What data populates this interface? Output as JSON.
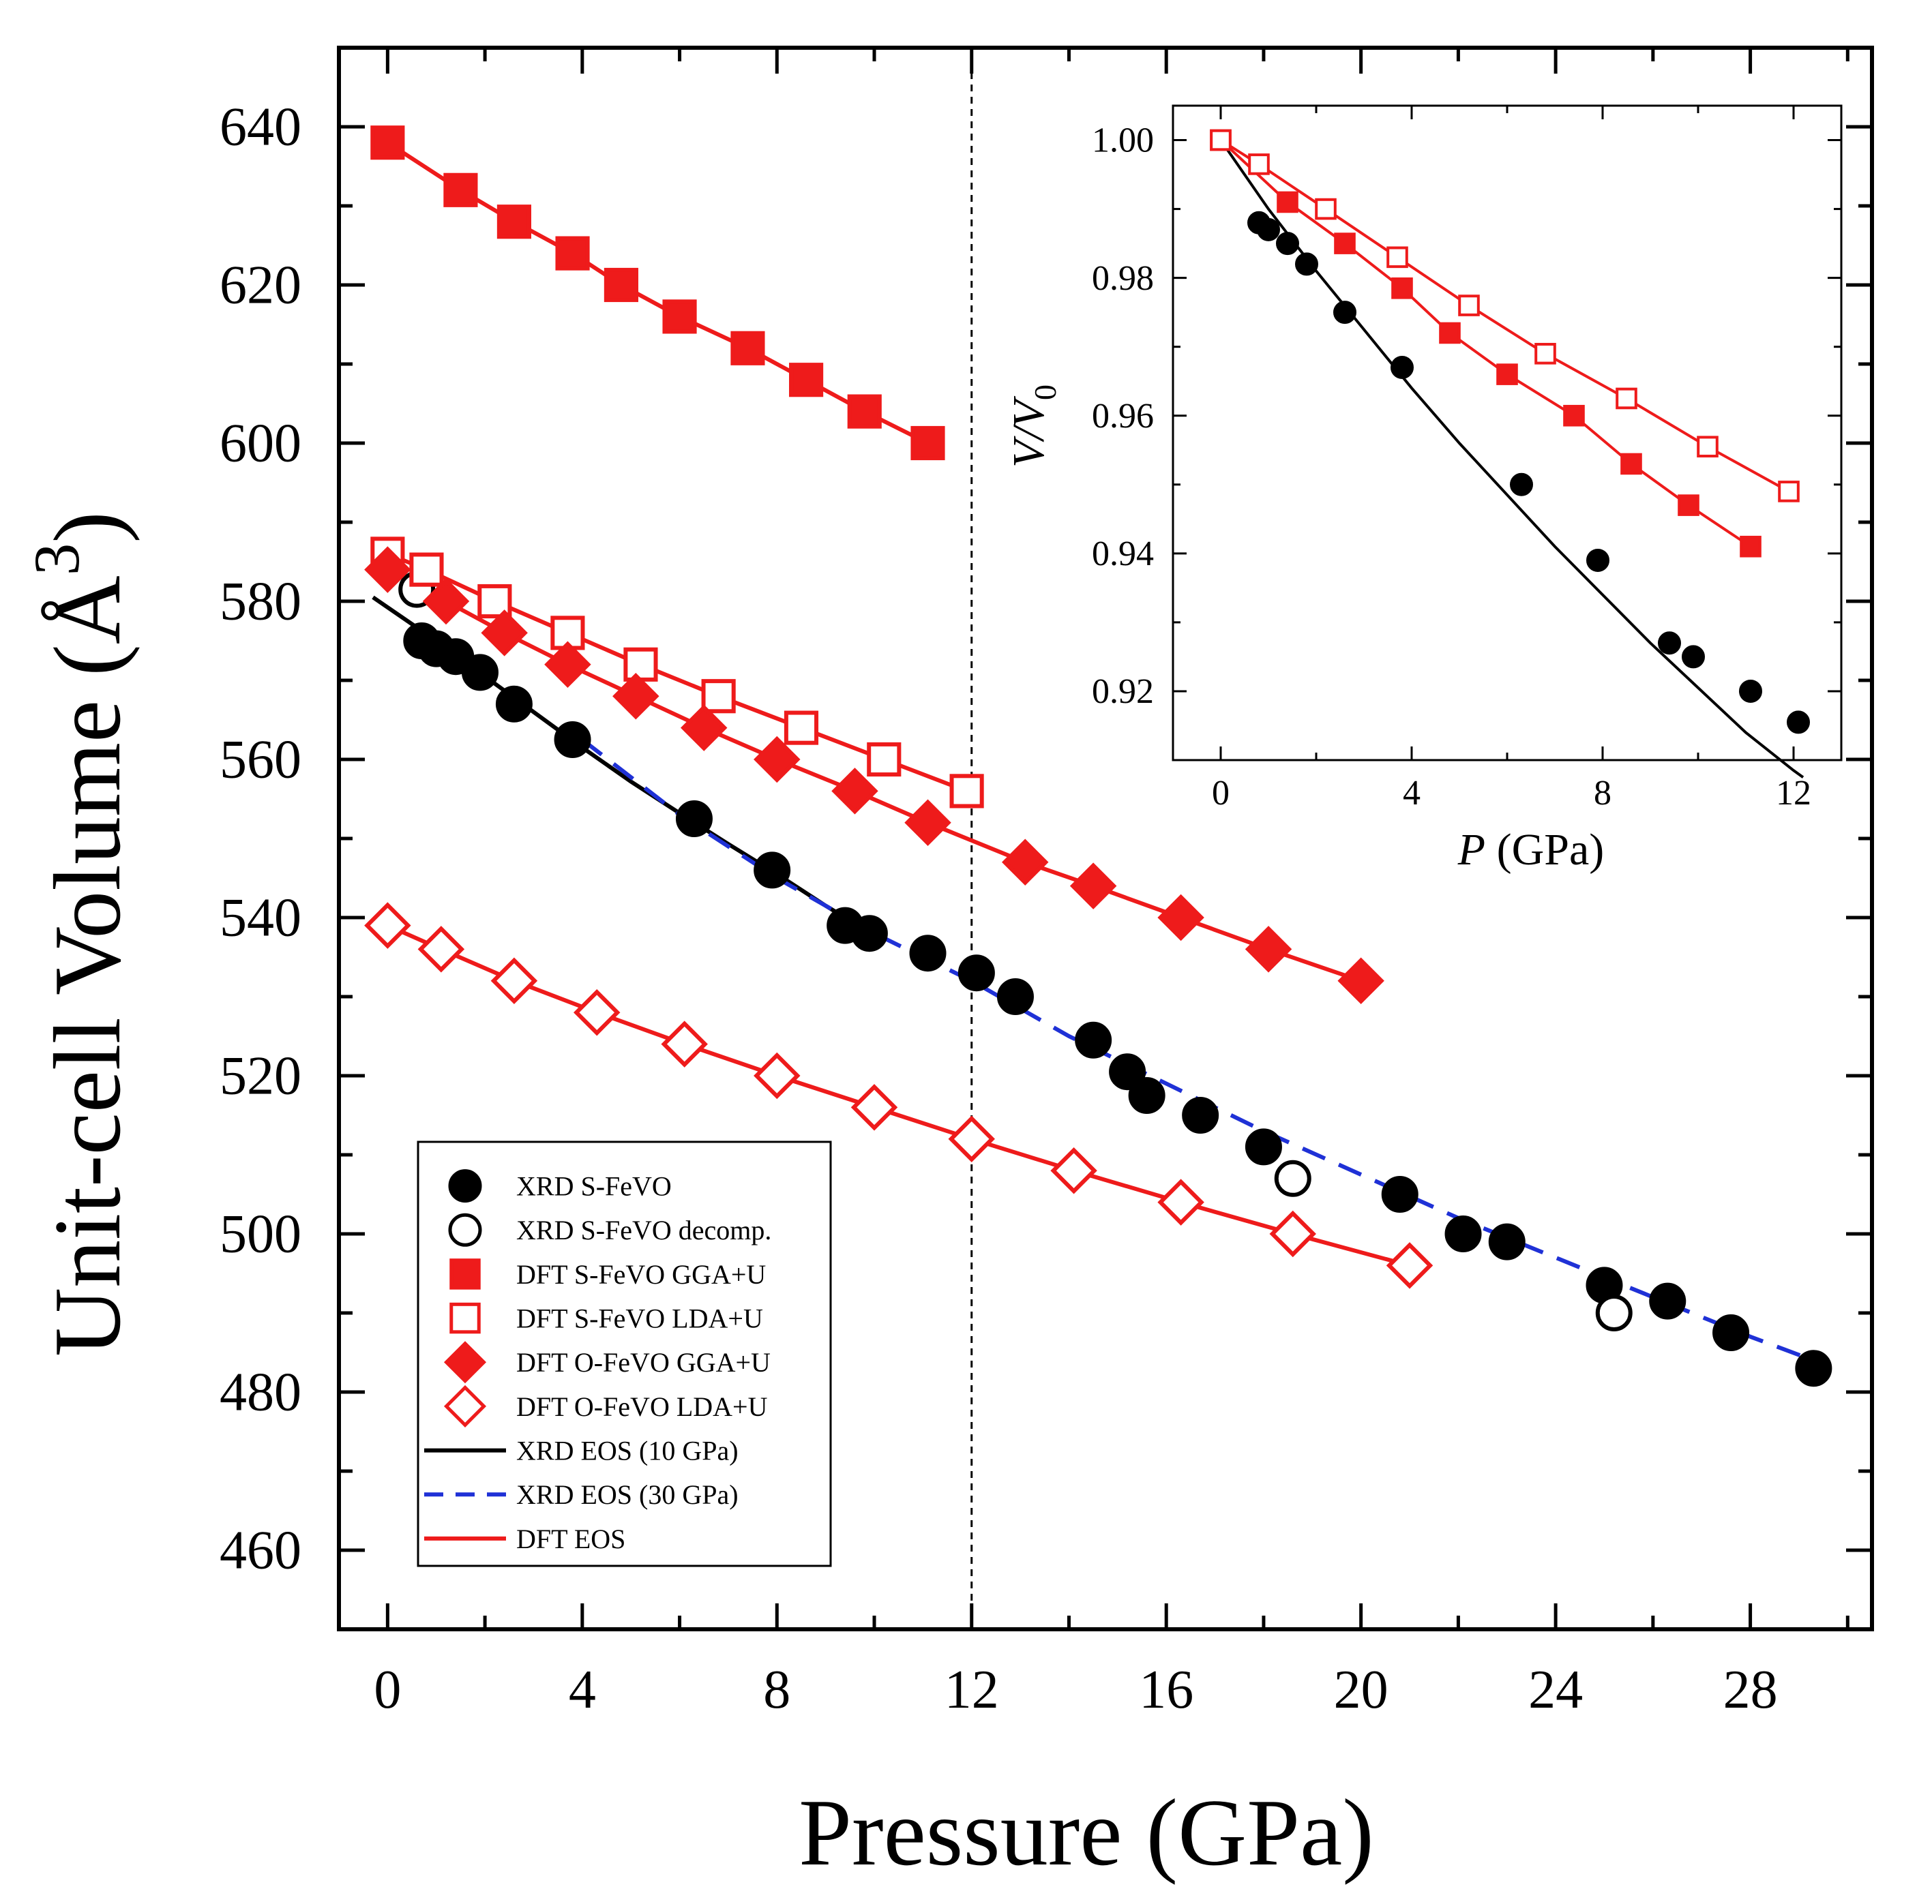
{
  "chart_data": [
    {
      "id": "main",
      "type": "scatter",
      "xlabel": "Pressure (GPa)",
      "ylabel_prefix": "Unit-cell Volume (Å",
      "ylabel_exp": "3",
      "ylabel_suffix": ")",
      "xlim": [
        -1,
        30.5
      ],
      "ylim": [
        450,
        650
      ],
      "xticks": [
        0,
        4,
        8,
        12,
        16,
        20,
        24,
        28
      ],
      "yticks": [
        460,
        480,
        500,
        520,
        540,
        560,
        580,
        600,
        620,
        640
      ],
      "reference_line_x": 12,
      "series": [
        {
          "name": "XRD S-FeVO",
          "marker": "circle-filled",
          "color": "#000000",
          "points": [
            [
              0.7,
              575
            ],
            [
              1.0,
              574
            ],
            [
              1.4,
              573
            ],
            [
              1.9,
              571
            ],
            [
              2.6,
              567
            ],
            [
              3.8,
              562.5
            ],
            [
              6.3,
              552.5
            ],
            [
              7.9,
              546
            ],
            [
              9.4,
              539
            ],
            [
              9.9,
              538
            ],
            [
              11.1,
              535.5
            ],
            [
              12.1,
              533
            ],
            [
              12.9,
              530
            ],
            [
              14.5,
              524.5
            ],
            [
              15.2,
              520.5
            ],
            [
              15.6,
              517.5
            ],
            [
              16.7,
              515
            ],
            [
              18.0,
              511
            ],
            [
              20.8,
              505
            ],
            [
              22.1,
              500
            ],
            [
              23.0,
              499
            ],
            [
              25.0,
              493.5
            ],
            [
              26.3,
              491.5
            ],
            [
              27.6,
              487.5
            ],
            [
              29.3,
              483
            ]
          ]
        },
        {
          "name": "XRD S-FeVO decomp.",
          "marker": "circle-open",
          "color": "#000000",
          "points": [
            [
              0.6,
              581.5
            ],
            [
              18.6,
              507
            ],
            [
              25.2,
              490
            ]
          ]
        },
        {
          "name": "DFT S-FeVO GGA+U",
          "marker": "square-filled",
          "color": "#ee1b1b",
          "points": [
            [
              0,
              638
            ],
            [
              1.5,
              632
            ],
            [
              2.6,
              628
            ],
            [
              3.8,
              624
            ],
            [
              4.8,
              620
            ],
            [
              6.0,
              616
            ],
            [
              7.4,
              612
            ],
            [
              8.6,
              608
            ],
            [
              9.8,
              604
            ],
            [
              11.1,
              600
            ]
          ]
        },
        {
          "name": "DFT S-FeVO LDA+U",
          "marker": "square-open",
          "color": "#ee1b1b",
          "points": [
            [
              0,
              586
            ],
            [
              0.8,
              584
            ],
            [
              2.2,
              580
            ],
            [
              3.7,
              576
            ],
            [
              5.2,
              572
            ],
            [
              6.8,
              568
            ],
            [
              8.5,
              564
            ],
            [
              10.2,
              560
            ],
            [
              11.9,
              556
            ]
          ]
        },
        {
          "name": "DFT O-FeVO GGA+U",
          "marker": "diamond-filled",
          "color": "#ee1b1b",
          "points": [
            [
              0,
              584
            ],
            [
              1.2,
              580
            ],
            [
              2.4,
              576
            ],
            [
              3.7,
              572
            ],
            [
              5.1,
              568
            ],
            [
              6.5,
              564
            ],
            [
              8.0,
              560
            ],
            [
              9.6,
              556
            ],
            [
              11.1,
              552
            ],
            [
              13.1,
              547
            ],
            [
              14.5,
              544
            ],
            [
              16.3,
              540
            ],
            [
              18.1,
              536
            ],
            [
              20.0,
              532
            ]
          ]
        },
        {
          "name": "DFT O-FeVO LDA+U",
          "marker": "diamond-open",
          "color": "#ee1b1b",
          "points": [
            [
              0,
              539
            ],
            [
              1.1,
              536
            ],
            [
              2.6,
              532
            ],
            [
              4.3,
              528
            ],
            [
              6.1,
              524
            ],
            [
              8.0,
              520
            ],
            [
              10.0,
              516
            ],
            [
              12.0,
              512
            ],
            [
              14.1,
              508
            ],
            [
              16.3,
              504
            ],
            [
              18.6,
              500
            ],
            [
              21.0,
              496
            ]
          ]
        },
        {
          "name": "XRD EOS (10 GPa)",
          "line": "solid",
          "color": "#000000",
          "points": [
            [
              -0.3,
              580.5
            ],
            [
              1,
              575
            ],
            [
              2,
              570.5
            ],
            [
              3,
              566
            ],
            [
              4,
              561.5
            ],
            [
              5,
              557.2
            ],
            [
              6,
              553.2
            ],
            [
              7,
              549.3
            ],
            [
              8,
              545.5
            ],
            [
              9,
              541.5
            ],
            [
              9.8,
              538.5
            ]
          ]
        },
        {
          "name": "XRD EOS (30 GPa)",
          "line": "dashed",
          "color": "#1f31d6",
          "points": [
            [
              4,
              562.5
            ],
            [
              6,
              553
            ],
            [
              8,
              545
            ],
            [
              10,
              538
            ],
            [
              12,
              532
            ],
            [
              14,
              525
            ],
            [
              16,
              519
            ],
            [
              18,
              513
            ],
            [
              20,
              507.5
            ],
            [
              22,
              502
            ],
            [
              24,
              497
            ],
            [
              26,
              492
            ],
            [
              28,
              487
            ],
            [
              29.3,
              484
            ]
          ]
        },
        {
          "name": "DFT EOS",
          "line": "solid",
          "color": "#ee1b1b",
          "legend_only": true,
          "points": []
        }
      ]
    },
    {
      "id": "inset",
      "type": "scatter",
      "xlabel_italic": "P",
      "xlabel_rest": " (GPa)",
      "ylabel_italic": "V/V",
      "ylabel_sub": "0",
      "xlim": [
        -1,
        13
      ],
      "ylim": [
        0.91,
        1.005
      ],
      "xticks": [
        0,
        4,
        8,
        12
      ],
      "yticks": [
        0.92,
        0.94,
        0.96,
        0.98,
        1.0
      ],
      "ytick_labels": [
        "0.92",
        "0.94",
        "0.96",
        "0.98",
        "1.00"
      ],
      "series": [
        {
          "name": "XRD S-FeVO",
          "marker": "circle-filled",
          "color": "#000000",
          "points": [
            [
              0.8,
              0.988
            ],
            [
              1.0,
              0.987
            ],
            [
              1.4,
              0.985
            ],
            [
              1.8,
              0.982
            ],
            [
              2.6,
              0.975
            ],
            [
              3.8,
              0.967
            ],
            [
              6.3,
              0.95
            ],
            [
              7.9,
              0.939
            ],
            [
              9.4,
              0.927
            ],
            [
              9.9,
              0.925
            ],
            [
              11.1,
              0.92
            ],
            [
              12.1,
              0.9155
            ]
          ]
        },
        {
          "name": "DFT S-FeVO GGA+U",
          "marker": "square-filled",
          "color": "#ee1b1b",
          "points": [
            [
              0,
              1.0
            ],
            [
              1.4,
              0.991
            ],
            [
              2.6,
              0.985
            ],
            [
              3.8,
              0.9785
            ],
            [
              4.8,
              0.972
            ],
            [
              6.0,
              0.966
            ],
            [
              7.4,
              0.96
            ],
            [
              8.6,
              0.953
            ],
            [
              9.8,
              0.947
            ],
            [
              11.1,
              0.941
            ]
          ]
        },
        {
          "name": "DFT S-FeVO LDA+U",
          "marker": "square-open",
          "color": "#ee1b1b",
          "points": [
            [
              0,
              1.0
            ],
            [
              0.8,
              0.9965
            ],
            [
              2.2,
              0.99
            ],
            [
              3.7,
              0.983
            ],
            [
              5.2,
              0.976
            ],
            [
              6.8,
              0.969
            ],
            [
              8.5,
              0.9625
            ],
            [
              10.2,
              0.9555
            ],
            [
              11.9,
              0.949
            ]
          ]
        },
        {
          "name": "XRD EOS fit",
          "line": "solid",
          "color": "#000000",
          "points": [
            [
              0,
              1.0
            ],
            [
              1,
              0.99
            ],
            [
              2,
              0.981
            ],
            [
              3,
              0.9725
            ],
            [
              4,
              0.964
            ],
            [
              5,
              0.956
            ],
            [
              6,
              0.9485
            ],
            [
              7,
              0.941
            ],
            [
              8,
              0.934
            ],
            [
              9,
              0.927
            ],
            [
              10,
              0.9205
            ],
            [
              11,
              0.914
            ],
            [
              12,
              0.9085
            ],
            [
              12.2,
              0.9075
            ]
          ]
        }
      ]
    }
  ]
}
